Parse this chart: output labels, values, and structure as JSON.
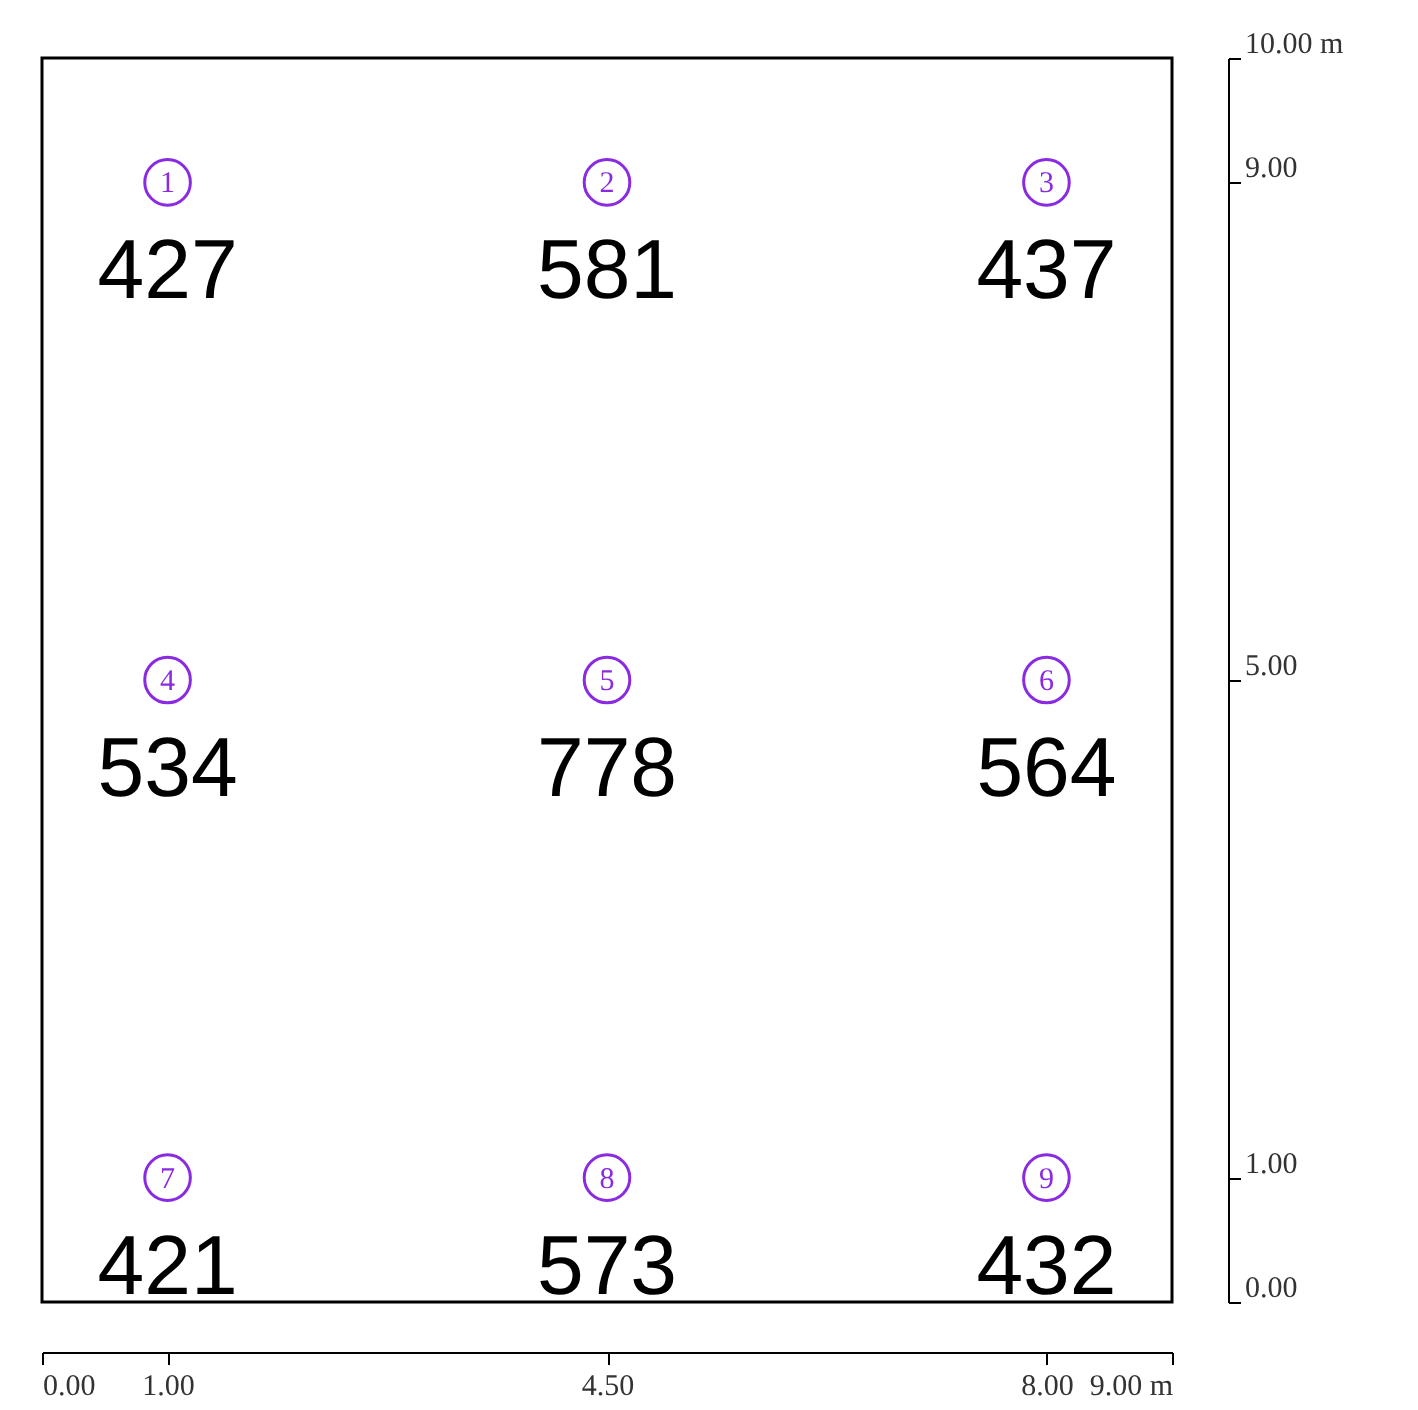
{
  "chart_data": {
    "type": "scatter",
    "x": [
      1,
      4.5,
      8,
      1,
      4.5,
      8,
      1,
      4.5,
      8
    ],
    "values": [
      9,
      9,
      9,
      5,
      5,
      5,
      1,
      1,
      1
    ],
    "color": "#8a2be2",
    "marker": "circle",
    "annotations": [
      {
        "text": "1",
        "x": 1,
        "y": 9
      },
      {
        "text": "2",
        "x": 4.5,
        "y": 9
      },
      {
        "text": "3",
        "x": 8,
        "y": 9
      },
      {
        "text": "4",
        "x": 1,
        "y": 5
      },
      {
        "text": "5",
        "x": 4.5,
        "y": 5
      },
      {
        "text": "6",
        "x": 8,
        "y": 5
      },
      {
        "text": "7",
        "x": 1,
        "y": 1
      },
      {
        "text": "8",
        "x": 4.5,
        "y": 1
      },
      {
        "text": "9",
        "x": 8,
        "y": 1
      },
      {
        "text": "427",
        "x": 1,
        "y": 9
      },
      {
        "text": "581",
        "x": 4.5,
        "y": 9
      },
      {
        "text": "437",
        "x": 8,
        "y": 9
      },
      {
        "text": "534",
        "x": 1,
        "y": 5
      },
      {
        "text": "778",
        "x": 4.5,
        "y": 5
      },
      {
        "text": "564",
        "x": 8,
        "y": 5
      },
      {
        "text": "421",
        "x": 1,
        "y": 1
      },
      {
        "text": "573",
        "x": 4.5,
        "y": 1
      },
      {
        "text": "432",
        "x": 8,
        "y": 1
      }
    ],
    "xlim": [
      0,
      9
    ],
    "xticks": [
      {
        "value": 0,
        "label": "0.00"
      },
      {
        "value": 1,
        "label": "1.00"
      },
      {
        "value": 4.5,
        "label": "4.50"
      },
      {
        "value": 8,
        "label": "8.00"
      },
      {
        "value": 9,
        "label": "9.00 m"
      }
    ],
    "ylim": [
      0,
      10
    ],
    "yticks": [
      {
        "value": 0,
        "label": "0.00"
      },
      {
        "value": 1,
        "label": "1.00"
      },
      {
        "value": 5,
        "label": "5.00"
      },
      {
        "value": 9,
        "label": "9.00"
      },
      {
        "value": 10,
        "label": "10.00 m"
      }
    ],
    "grid": false
  }
}
